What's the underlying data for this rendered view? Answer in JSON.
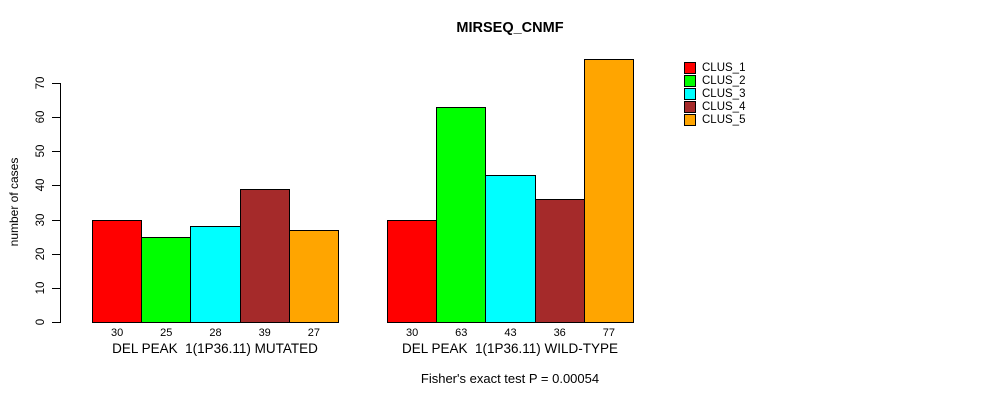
{
  "chart_data": {
    "type": "bar",
    "title": "MIRSEQ_CNMF",
    "xlabel": "",
    "ylabel": "number of cases",
    "categories": [
      "DEL PEAK  1(1P36.11) MUTATED",
      "DEL PEAK  1(1P36.11) WILD-TYPE"
    ],
    "series": [
      {
        "name": "CLUS_1",
        "color": "#FF0000",
        "values": [
          30,
          30
        ]
      },
      {
        "name": "CLUS_2",
        "color": "#00FF00",
        "values": [
          25,
          63
        ]
      },
      {
        "name": "CLUS_3",
        "color": "#00FFFF",
        "values": [
          28,
          43
        ]
      },
      {
        "name": "CLUS_4",
        "color": "#A52A2A",
        "values": [
          39,
          36
        ]
      },
      {
        "name": "CLUS_5",
        "color": "#FFA500",
        "values": [
          27,
          77
        ]
      }
    ],
    "bar_value_labels": [
      [
        "30",
        "25",
        "28",
        "39",
        "27"
      ],
      [
        "30",
        "63",
        "43",
        "36",
        "77"
      ]
    ],
    "yticks": [
      "0",
      "10",
      "20",
      "30",
      "40",
      "50",
      "60",
      "70"
    ],
    "ylim": [
      0,
      77
    ],
    "grid": false,
    "legend": {
      "position": "right",
      "entries": [
        "CLUS_1",
        "CLUS_2",
        "CLUS_3",
        "CLUS_4",
        "CLUS_5"
      ]
    },
    "annotation": "Fisher's exact test P = 0.00054"
  }
}
